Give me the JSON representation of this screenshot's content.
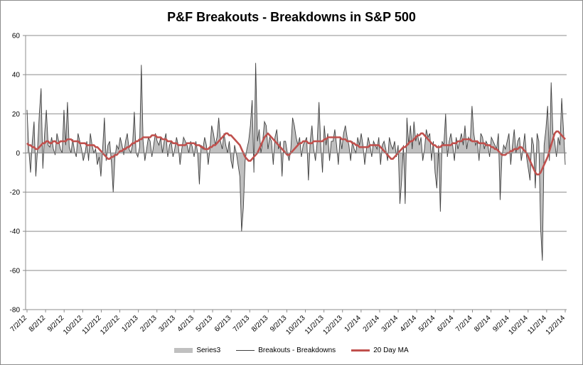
{
  "chart_data": {
    "type": "area",
    "title": "P&F Breakouts - Breakdowns in S&P 500",
    "xlabel": "",
    "ylabel": "",
    "ylim": [
      -80,
      60
    ],
    "ytick_labels": [
      "60",
      "40",
      "20",
      "0",
      "-20",
      "-40",
      "-60",
      "-80"
    ],
    "y_ticks": [
      60,
      40,
      20,
      0,
      -20,
      -40,
      -60,
      -80
    ],
    "x_tick_labels": [
      "7/2/12",
      "8/2/12",
      "9/2/12",
      "10/2/12",
      "11/2/12",
      "12/2/12",
      "1/2/13",
      "2/2/13",
      "3/2/13",
      "4/2/13",
      "5/2/13",
      "6/2/13",
      "7/2/13",
      "8/2/13",
      "9/2/13",
      "10/2/13",
      "11/2/13",
      "12/2/13",
      "1/2/14",
      "2/2/14",
      "3/2/14",
      "4/2/14",
      "5/2/14",
      "6/2/14",
      "7/2/14",
      "8/2/14",
      "9/2/14",
      "10/2/14",
      "11/2/14",
      "12/2/14"
    ],
    "grid": true,
    "legend_position": "bottom",
    "series": [
      {
        "name": "Series3",
        "kind": "area",
        "color": "#c0c0c0",
        "values": [
          22,
          2,
          -10,
          6,
          16,
          -12,
          2,
          20,
          33,
          -8,
          10,
          22,
          4,
          3,
          8,
          2,
          -1,
          10,
          6,
          2,
          0,
          22,
          4,
          26,
          3,
          0,
          7,
          1,
          -2,
          10,
          6,
          2,
          -4,
          0,
          6,
          -4,
          10,
          4,
          0,
          2,
          -6,
          -2,
          -12,
          2,
          18,
          -4,
          4,
          6,
          -5,
          -20,
          -2,
          4,
          2,
          8,
          4,
          -1,
          6,
          10,
          2,
          0,
          4,
          21,
          0,
          -2,
          3,
          45,
          6,
          -4,
          2,
          8,
          6,
          -2,
          4,
          10,
          6,
          4,
          8,
          0,
          6,
          10,
          -2,
          4,
          6,
          -2,
          2,
          8,
          4,
          -6,
          2,
          8,
          6,
          4,
          0,
          6,
          3,
          -2,
          6,
          0,
          -16,
          4,
          2,
          8,
          4,
          -6,
          2,
          14,
          10,
          4,
          8,
          18,
          6,
          2,
          10,
          4,
          0,
          6,
          -4,
          -8,
          4,
          0,
          -6,
          -12,
          -40,
          -28,
          -4,
          2,
          6,
          14,
          27,
          -10,
          46,
          6,
          12,
          0,
          6,
          16,
          14,
          2,
          8,
          6,
          -6,
          8,
          12,
          2,
          6,
          -12,
          6,
          6,
          0,
          -4,
          2,
          18,
          14,
          8,
          4,
          8,
          -2,
          4,
          6,
          8,
          -14,
          6,
          14,
          2,
          -4,
          6,
          26,
          4,
          -10,
          14,
          4,
          10,
          -4,
          6,
          6,
          12,
          4,
          -6,
          8,
          2,
          10,
          14,
          8,
          4,
          -4,
          6,
          2,
          0,
          8,
          4,
          10,
          4,
          -6,
          2,
          8,
          4,
          -2,
          6,
          4,
          2,
          8,
          -6,
          4,
          6,
          2,
          -4,
          8,
          4,
          2,
          6,
          -2,
          4,
          -26,
          -14,
          4,
          -26,
          18,
          4,
          14,
          2,
          16,
          6,
          10,
          4,
          8,
          -4,
          2,
          12,
          8,
          10,
          -4,
          6,
          -10,
          -18,
          4,
          -30,
          6,
          4,
          20,
          -2,
          6,
          10,
          4,
          -4,
          8,
          2,
          6,
          10,
          4,
          14,
          2,
          8,
          6,
          24,
          10,
          4,
          6,
          -4,
          10,
          8,
          2,
          6,
          4,
          -2,
          8,
          6,
          4,
          2,
          10,
          -24,
          -2,
          4,
          2,
          6,
          10,
          -6,
          4,
          12,
          0,
          6,
          8,
          -4,
          2,
          10,
          -2,
          -8,
          -14,
          8,
          4,
          -18,
          10,
          6,
          -38,
          -55,
          4,
          12,
          24,
          -4,
          36,
          10,
          6,
          -2,
          8,
          4,
          28,
          12,
          -6
        ]
      },
      {
        "name": "Breakouts - Breakdowns",
        "kind": "line",
        "color": "#404040",
        "values": [
          22,
          2,
          -10,
          6,
          16,
          -12,
          2,
          20,
          33,
          -8,
          10,
          22,
          4,
          3,
          8,
          2,
          -1,
          10,
          6,
          2,
          0,
          22,
          4,
          26,
          3,
          0,
          7,
          1,
          -2,
          10,
          6,
          2,
          -4,
          0,
          6,
          -4,
          10,
          4,
          0,
          2,
          -6,
          -2,
          -12,
          2,
          18,
          -4,
          4,
          6,
          -5,
          -20,
          -2,
          4,
          2,
          8,
          4,
          -1,
          6,
          10,
          2,
          0,
          4,
          21,
          0,
          -2,
          3,
          45,
          6,
          -4,
          2,
          8,
          6,
          -2,
          4,
          10,
          6,
          4,
          8,
          0,
          6,
          10,
          -2,
          4,
          6,
          -2,
          2,
          8,
          4,
          -6,
          2,
          8,
          6,
          4,
          0,
          6,
          3,
          -2,
          6,
          0,
          -16,
          4,
          2,
          8,
          4,
          -6,
          2,
          14,
          10,
          4,
          8,
          18,
          6,
          2,
          10,
          4,
          0,
          6,
          -4,
          -8,
          4,
          0,
          -6,
          -12,
          -40,
          -28,
          -4,
          2,
          6,
          14,
          27,
          -10,
          46,
          6,
          12,
          0,
          6,
          16,
          14,
          2,
          8,
          6,
          -6,
          8,
          12,
          2,
          6,
          -12,
          6,
          6,
          0,
          -4,
          2,
          18,
          14,
          8,
          4,
          8,
          -2,
          4,
          6,
          8,
          -14,
          6,
          14,
          2,
          -4,
          6,
          26,
          4,
          -10,
          14,
          4,
          10,
          -4,
          6,
          6,
          12,
          4,
          -6,
          8,
          2,
          10,
          14,
          8,
          4,
          -4,
          6,
          2,
          0,
          8,
          4,
          10,
          4,
          -6,
          2,
          8,
          4,
          -2,
          6,
          4,
          2,
          8,
          -6,
          4,
          6,
          2,
          -4,
          8,
          4,
          2,
          6,
          -2,
          4,
          -26,
          -14,
          4,
          -26,
          18,
          4,
          14,
          2,
          16,
          6,
          10,
          4,
          8,
          -4,
          2,
          12,
          8,
          10,
          -4,
          6,
          -10,
          -18,
          4,
          -30,
          6,
          4,
          20,
          -2,
          6,
          10,
          4,
          -4,
          8,
          2,
          6,
          10,
          4,
          14,
          2,
          8,
          6,
          24,
          10,
          4,
          6,
          -4,
          10,
          8,
          2,
          6,
          4,
          -2,
          8,
          6,
          4,
          2,
          10,
          -24,
          -2,
          4,
          2,
          6,
          10,
          -6,
          4,
          12,
          0,
          6,
          8,
          -4,
          2,
          10,
          -2,
          -8,
          -14,
          8,
          4,
          -18,
          10,
          6,
          -38,
          -55,
          4,
          12,
          24,
          -4,
          36,
          10,
          6,
          -2,
          8,
          4,
          28,
          12,
          -6
        ]
      },
      {
        "name": "20 Day MA",
        "kind": "line",
        "color": "#c0504d",
        "values": [
          5,
          4,
          4,
          3,
          3,
          2,
          2,
          3,
          4,
          5,
          5,
          6,
          6,
          5,
          5,
          6,
          6,
          5,
          5,
          6,
          6,
          6,
          6,
          7,
          7,
          7,
          6,
          6,
          6,
          6,
          5,
          5,
          5,
          5,
          4,
          4,
          4,
          4,
          4,
          3,
          3,
          2,
          1,
          0,
          -1,
          -2,
          -3,
          -3,
          -2,
          -2,
          -1,
          -1,
          0,
          1,
          1,
          2,
          2,
          3,
          3,
          4,
          5,
          5,
          6,
          6,
          7,
          7,
          8,
          8,
          8,
          8,
          8,
          9,
          9,
          9,
          8,
          8,
          8,
          7,
          7,
          7,
          6,
          6,
          6,
          5,
          5,
          5,
          4,
          4,
          4,
          4,
          4,
          5,
          5,
          5,
          5,
          5,
          4,
          4,
          4,
          3,
          3,
          2,
          2,
          2,
          3,
          3,
          4,
          4,
          5,
          6,
          7,
          8,
          9,
          10,
          10,
          9,
          9,
          8,
          7,
          6,
          5,
          4,
          2,
          0,
          -2,
          -3,
          -4,
          -4,
          -3,
          -2,
          -1,
          0,
          2,
          4,
          6,
          8,
          9,
          10,
          9,
          8,
          7,
          6,
          5,
          4,
          3,
          2,
          1,
          0,
          -1,
          -1,
          0,
          1,
          2,
          3,
          4,
          5,
          5,
          6,
          6,
          6,
          5,
          5,
          5,
          6,
          6,
          6,
          6,
          6,
          6,
          7,
          7,
          8,
          8,
          8,
          8,
          8,
          8,
          8,
          8,
          7,
          7,
          7,
          6,
          6,
          6,
          5,
          5,
          4,
          4,
          3,
          3,
          3,
          3,
          3,
          3,
          4,
          4,
          4,
          4,
          4,
          4,
          3,
          2,
          1,
          0,
          -1,
          -2,
          -3,
          -3,
          -2,
          -1,
          0,
          1,
          2,
          3,
          3,
          4,
          5,
          6,
          6,
          7,
          8,
          9,
          9,
          10,
          10,
          9,
          8,
          7,
          6,
          5,
          4,
          4,
          3,
          3,
          3,
          4,
          4,
          4,
          4,
          4,
          4,
          5,
          5,
          5,
          6,
          6,
          6,
          7,
          7,
          7,
          7,
          7,
          6,
          6,
          6,
          6,
          5,
          5,
          5,
          5,
          4,
          4,
          4,
          3,
          3,
          2,
          2,
          1,
          0,
          -1,
          -1,
          -1,
          0,
          0,
          1,
          1,
          2,
          2,
          2,
          3,
          3,
          2,
          1,
          0,
          -2,
          -4,
          -6,
          -8,
          -10,
          -11,
          -11,
          -10,
          -8,
          -6,
          -4,
          -2,
          1,
          4,
          7,
          10,
          11,
          11,
          10,
          9,
          8,
          7
        ]
      }
    ]
  }
}
